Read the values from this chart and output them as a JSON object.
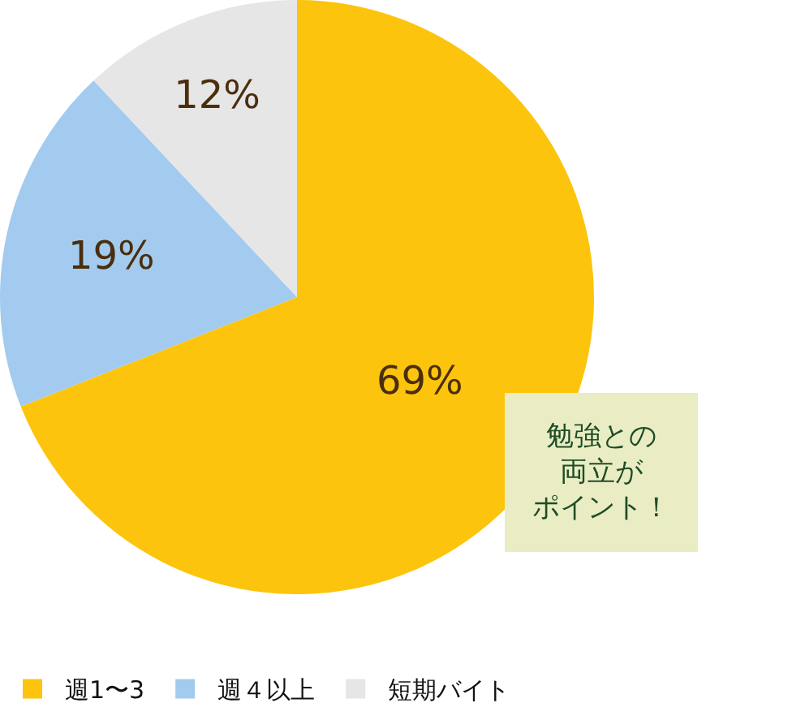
{
  "chart_data": {
    "type": "pie",
    "categories": [
      "週1〜3",
      "週４以上",
      "短期バイト"
    ],
    "values": [
      69,
      19,
      12
    ],
    "colors": [
      "#fcc40c",
      "#a2cbef",
      "#e6e6e6"
    ],
    "value_labels": [
      "69%",
      "19%",
      "12%"
    ],
    "legend": "bottom left",
    "annotations": [
      "勉強との両立がポイント！"
    ]
  }
}
